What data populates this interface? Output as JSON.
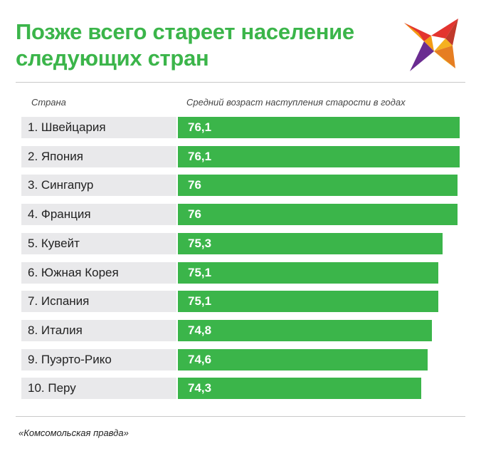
{
  "header": {
    "title": "Позже всего стареет население следующих стран"
  },
  "colors": {
    "accent": "#3bb54a",
    "label_bg": "#e9e9eb"
  },
  "chart_data": {
    "type": "bar",
    "orientation": "horizontal",
    "title": "Позже всего стареет население следующих стран",
    "category_header": "Страна",
    "value_header": "Средний возраст наступления старости в годах",
    "categories": [
      "1. Швейцария",
      "2. Япония",
      "3. Сингапур",
      "4. Франция",
      "5. Кувейт",
      "6. Южная Корея",
      "7. Испания",
      "8. Италия",
      "9. Пуэрто-Рико",
      "10. Перу"
    ],
    "values": [
      76.1,
      76.1,
      76,
      76,
      75.3,
      75.1,
      75.1,
      74.8,
      74.6,
      74.3
    ],
    "value_labels": [
      "76,1",
      "76,1",
      "76",
      "76",
      "75,3",
      "75,1",
      "75,1",
      "74,8",
      "74,6",
      "74,3"
    ],
    "xlim": [
      63,
      76.1
    ]
  },
  "footer": {
    "source": "«Комсомольская правда»"
  }
}
